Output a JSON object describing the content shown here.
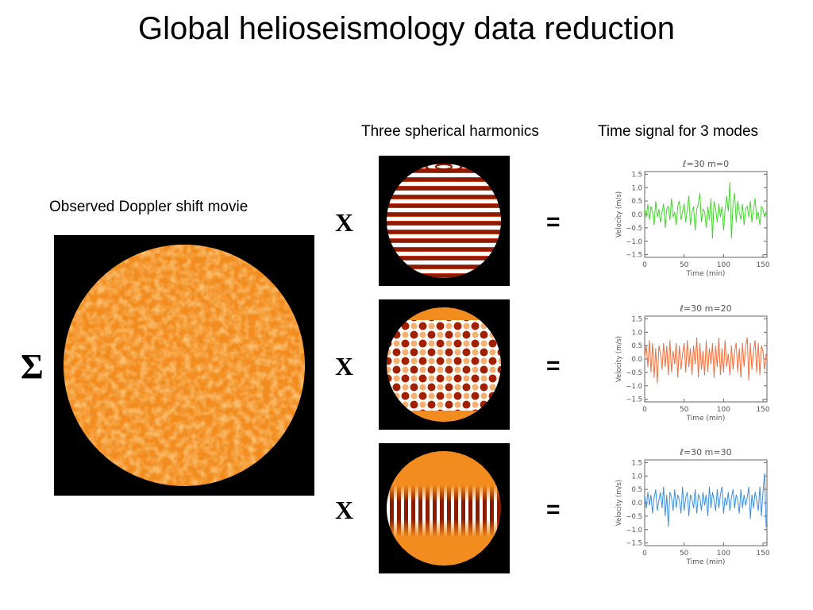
{
  "title": "Global helioseismology data reduction",
  "labels": {
    "harmonics_header": "Three spherical harmonics",
    "signals_header": "Time signal for 3 modes",
    "doppler": "Observed Doppler shift movie"
  },
  "symbols": {
    "sum": "Σ",
    "times": "X",
    "equals": "="
  },
  "colors": {
    "sun_orange": "#f28c1e",
    "mode_dark": "#8a1a00",
    "mode_light": "#ffffff",
    "series": [
      "#44d62c",
      "#f26d3d",
      "#3d8fdd"
    ]
  },
  "chart_data": [
    {
      "type": "line",
      "title": "ℓ=30 m=0",
      "xlabel": "Time (min)",
      "ylabel": "Velocity (m/s)",
      "xlim": [
        0,
        155
      ],
      "ylim": [
        -1.6,
        1.6
      ],
      "xticks": [
        "0",
        "50",
        "100",
        "150"
      ],
      "yticks": [
        "1.5",
        "1.0",
        "0.5",
        "0.0",
        "−0.5",
        "−1.0",
        "−1.5"
      ],
      "series": [
        {
          "color": "#44d62c",
          "x": [
            0,
            2,
            4,
            6,
            8,
            10,
            12,
            14,
            16,
            18,
            20,
            22,
            24,
            26,
            28,
            30,
            32,
            34,
            36,
            38,
            40,
            42,
            44,
            46,
            48,
            50,
            52,
            54,
            56,
            58,
            60,
            62,
            64,
            66,
            68,
            70,
            72,
            74,
            76,
            78,
            80,
            82,
            84,
            86,
            88,
            90,
            92,
            94,
            96,
            98,
            100,
            102,
            104,
            106,
            108,
            110,
            112,
            114,
            116,
            118,
            120,
            122,
            124,
            126,
            128,
            130,
            132,
            134,
            136,
            138,
            140,
            142,
            144,
            146,
            148,
            150,
            152,
            154
          ],
          "values": [
            0.2,
            -0.1,
            0.4,
            -0.2,
            0.3,
            0.1,
            -0.4,
            0.5,
            -0.1,
            0.2,
            -0.3,
            0.1,
            0.4,
            -0.5,
            0.2,
            0.3,
            -0.2,
            0.6,
            -0.1,
            0.1,
            -0.4,
            0.3,
            0.5,
            -0.2,
            0.1,
            0.4,
            -0.3,
            0.2,
            0.7,
            -0.4,
            0.1,
            0.3,
            -0.6,
            0.2,
            0.4,
            0.8,
            -0.3,
            0.2,
            0.1,
            -0.5,
            0.3,
            -0.2,
            0.6,
            -0.9,
            0.5,
            0.2,
            -0.3,
            0.4,
            -0.1,
            0.3,
            -0.6,
            0.2,
            0.7,
            0.1,
            1.2,
            -0.9,
            0.4,
            0.8,
            -0.3,
            0.5,
            0.1,
            -0.2,
            0.4,
            -0.4,
            0.2,
            0.3,
            -0.1,
            0.5,
            -0.3,
            0.2,
            0.6,
            -0.2,
            0.1,
            -0.4,
            0.3,
            0.2,
            -0.1,
            0.1
          ]
        }
      ]
    },
    {
      "type": "line",
      "title": "ℓ=30 m=20",
      "xlabel": "Time (min)",
      "ylabel": "Velocity (m/s)",
      "xlim": [
        0,
        155
      ],
      "ylim": [
        -1.6,
        1.6
      ],
      "xticks": [
        "0",
        "50",
        "100",
        "150"
      ],
      "yticks": [
        "1.5",
        "1.0",
        "0.5",
        "0.0",
        "−0.5",
        "−1.0",
        "−1.5"
      ],
      "series": [
        {
          "color": "#f26d3d",
          "x": [
            0,
            2,
            4,
            6,
            8,
            10,
            12,
            14,
            16,
            18,
            20,
            22,
            24,
            26,
            28,
            30,
            32,
            34,
            36,
            38,
            40,
            42,
            44,
            46,
            48,
            50,
            52,
            54,
            56,
            58,
            60,
            62,
            64,
            66,
            68,
            70,
            72,
            74,
            76,
            78,
            80,
            82,
            84,
            86,
            88,
            90,
            92,
            94,
            96,
            98,
            100,
            102,
            104,
            106,
            108,
            110,
            112,
            114,
            116,
            118,
            120,
            122,
            124,
            126,
            128,
            130,
            132,
            134,
            136,
            138,
            140,
            142,
            144,
            146,
            148,
            150,
            152,
            154
          ],
          "values": [
            0.1,
            0.5,
            -0.3,
            0.7,
            -0.5,
            0.6,
            -0.7,
            0.4,
            -0.9,
            0.5,
            0.2,
            -0.4,
            0.6,
            -0.3,
            0.5,
            -0.6,
            0.7,
            -0.5,
            0.3,
            -0.2,
            0.6,
            -0.7,
            0.5,
            -0.4,
            0.2,
            0.6,
            -0.5,
            0.7,
            -0.3,
            0.4,
            -0.6,
            0.5,
            -0.2,
            0.8,
            -0.7,
            0.6,
            -0.4,
            0.3,
            -0.6,
            0.7,
            -0.5,
            0.4,
            -0.2,
            0.6,
            -0.7,
            0.5,
            -0.3,
            0.8,
            -0.6,
            0.4,
            -0.5,
            0.7,
            -0.3,
            0.2,
            -0.6,
            0.5,
            -0.4,
            0.3,
            0.6,
            -0.5,
            0.4,
            -0.7,
            0.6,
            -0.3,
            0.5,
            0.8,
            -0.8,
            0.6,
            -0.4,
            0.3,
            0.7,
            -0.5,
            0.6,
            -0.6,
            0.5,
            0.3,
            -0.4,
            0.2
          ]
        }
      ]
    },
    {
      "type": "line",
      "title": "ℓ=30 m=30",
      "xlabel": "Time (min)",
      "ylabel": "Velocity (m/s)",
      "xlim": [
        0,
        155
      ],
      "ylim": [
        -1.6,
        1.6
      ],
      "xticks": [
        "0",
        "50",
        "100",
        "150"
      ],
      "yticks": [
        "1.5",
        "1.0",
        "0.5",
        "0.0",
        "−0.5",
        "−1.0",
        "−1.5"
      ],
      "series": [
        {
          "color": "#3d8fdd",
          "x": [
            0,
            2,
            4,
            6,
            8,
            10,
            12,
            14,
            16,
            18,
            20,
            22,
            24,
            26,
            28,
            30,
            32,
            34,
            36,
            38,
            40,
            42,
            44,
            46,
            48,
            50,
            52,
            54,
            56,
            58,
            60,
            62,
            64,
            66,
            68,
            70,
            72,
            74,
            76,
            78,
            80,
            82,
            84,
            86,
            88,
            90,
            92,
            94,
            96,
            98,
            100,
            102,
            104,
            106,
            108,
            110,
            112,
            114,
            116,
            118,
            120,
            122,
            124,
            126,
            128,
            130,
            132,
            134,
            136,
            138,
            140,
            142,
            144,
            146,
            148,
            150,
            152,
            154
          ],
          "values": [
            0.3,
            -0.2,
            0.4,
            -0.1,
            0.3,
            -0.4,
            0.2,
            0.5,
            -0.3,
            0.1,
            0.4,
            -0.2,
            0.6,
            -0.5,
            0.3,
            -0.9,
            0.4,
            0.2,
            -0.3,
            0.5,
            -0.2,
            0.3,
            0.1,
            -0.4,
            0.6,
            -0.3,
            0.2,
            0.4,
            -0.5,
            0.3,
            0.1,
            -0.2,
            0.5,
            -0.4,
            0.3,
            0.2,
            -0.3,
            0.4,
            -0.1,
            0.3,
            -0.5,
            0.6,
            -0.2,
            0.4,
            0.1,
            -0.3,
            0.5,
            -0.2,
            0.3,
            0.6,
            -0.4,
            0.2,
            -0.1,
            0.4,
            -0.3,
            0.2,
            0.5,
            -0.2,
            0.3,
            0.1,
            -0.4,
            0.5,
            -0.2,
            0.3,
            -0.1,
            0.2,
            0.6,
            -0.6,
            0.3,
            -0.2,
            0.4,
            0.1,
            -0.3,
            0.6,
            -0.5,
            0.4,
            1.1,
            -0.9
          ]
        }
      ]
    }
  ]
}
